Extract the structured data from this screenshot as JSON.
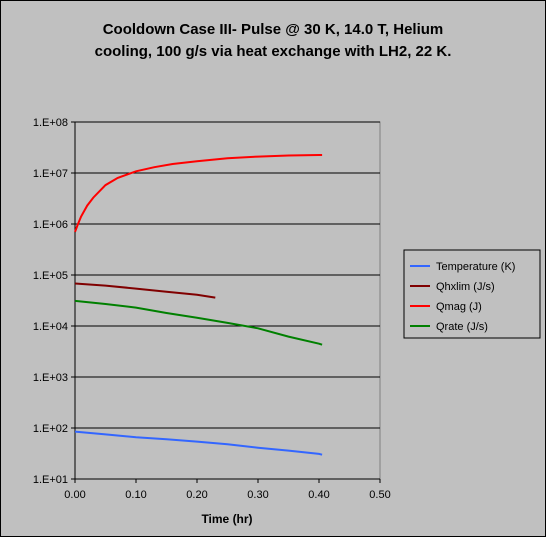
{
  "chart_data": {
    "type": "line",
    "title_lines": [
      "Cooldown Case III- Pulse @ 30 K, 14.0 T, Helium",
      "cooling, 100 g/s via heat exchange with LH2, 22 K."
    ],
    "xlabel": "Time (hr)",
    "ylabel": "",
    "xlim": [
      0,
      0.5
    ],
    "ylim": [
      10,
      100000000
    ],
    "yscale": "log",
    "grid": "horizontal",
    "legend_position": "right",
    "x_ticks": [
      "0.00",
      "0.10",
      "0.20",
      "0.30",
      "0.40",
      "0.50"
    ],
    "x_tick_values": [
      0,
      0.1,
      0.2,
      0.3,
      0.4,
      0.5
    ],
    "y_ticks": [
      "1.E+01",
      "1.E+02",
      "1.E+03",
      "1.E+04",
      "1.E+05",
      "1.E+06",
      "1.E+07",
      "1.E+08"
    ],
    "y_tick_values": [
      10,
      100,
      1000,
      10000,
      100000,
      1000000,
      10000000,
      100000000
    ],
    "series": [
      {
        "name": "Temperature (K)",
        "color": "#3366ff",
        "x": [
          0.0,
          0.05,
          0.1,
          0.15,
          0.2,
          0.25,
          0.3,
          0.35,
          0.4,
          0.405
        ],
        "y": [
          85,
          75,
          66,
          60,
          54,
          48,
          41,
          36,
          31,
          30
        ]
      },
      {
        "name": "Qhxlim (J/s)",
        "color": "#800000",
        "x": [
          0.0,
          0.05,
          0.1,
          0.15,
          0.2,
          0.23
        ],
        "y": [
          68000,
          62000,
          54000,
          47000,
          41000,
          36000
        ]
      },
      {
        "name": "Qmag  (J)",
        "color": "#ff0000",
        "x": [
          0.0,
          0.005,
          0.01,
          0.02,
          0.03,
          0.05,
          0.07,
          0.1,
          0.13,
          0.16,
          0.2,
          0.25,
          0.3,
          0.35,
          0.4,
          0.405
        ],
        "y": [
          700000,
          1000000,
          1400000,
          2300000,
          3300000,
          5800000,
          8000000,
          10800000,
          13000000,
          15000000,
          17000000,
          19500000,
          21000000,
          22000000,
          22500000,
          22500000
        ]
      },
      {
        "name": "Qrate  (J/s)",
        "color": "#008000",
        "x": [
          0.0,
          0.05,
          0.1,
          0.15,
          0.2,
          0.25,
          0.3,
          0.35,
          0.4,
          0.405
        ],
        "y": [
          31000,
          27000,
          23000,
          18000,
          14500,
          11500,
          9000,
          6200,
          4500,
          4300
        ]
      }
    ]
  }
}
